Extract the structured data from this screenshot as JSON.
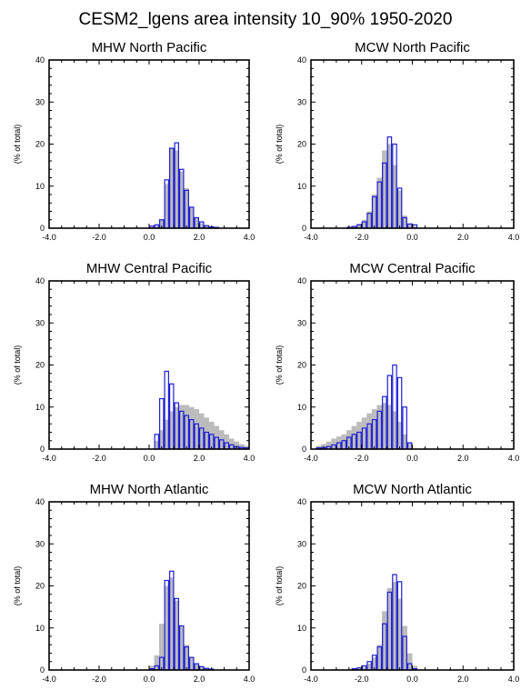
{
  "figure": {
    "title": "CESM2_lgens area intensity 10_90% 1950-2020"
  },
  "chart_data": [
    {
      "type": "bar",
      "title": "MHW North Pacific",
      "ylabel": "(% of total)",
      "xlim": [
        -4.0,
        4.0
      ],
      "ylim": [
        0,
        40
      ],
      "xticks": [
        "-4.0",
        "-2.0",
        "0.0",
        "2.0",
        "4.0"
      ],
      "yticks": [
        "0",
        "10",
        "20",
        "30",
        "40"
      ],
      "bin_width": 0.2,
      "series": [
        {
          "style": "filled-gray",
          "bin_starts": [
            0.0,
            0.2,
            0.4,
            0.6,
            0.8,
            1.0,
            1.2,
            1.4,
            1.6,
            1.8,
            2.0,
            2.2,
            2.4,
            2.6
          ],
          "values": [
            0.3,
            0.6,
            2.0,
            10.5,
            19.0,
            18.5,
            13.5,
            9.5,
            5.0,
            2.5,
            1.2,
            0.5,
            0.3,
            0.2
          ]
        },
        {
          "style": "outline-blue",
          "bin_starts": [
            0.0,
            0.2,
            0.4,
            0.6,
            0.8,
            1.0,
            1.2,
            1.4,
            1.6,
            1.8,
            2.0,
            2.2,
            2.4,
            2.6
          ],
          "values": [
            0.5,
            0.8,
            2.0,
            11.5,
            19.0,
            20.3,
            14.0,
            9.0,
            5.0,
            2.5,
            1.5,
            0.6,
            0.3,
            0.2
          ]
        }
      ]
    },
    {
      "type": "bar",
      "title": "MCW North Pacific",
      "ylabel": "(% of total)",
      "xlim": [
        -4.0,
        4.0
      ],
      "ylim": [
        0,
        40
      ],
      "xticks": [
        "-4.0",
        "-2.0",
        "0.0",
        "2.0",
        "4.0"
      ],
      "yticks": [
        "0",
        "10",
        "20",
        "30",
        "40"
      ],
      "bin_width": 0.2,
      "series": [
        {
          "style": "filled-gray",
          "bin_starts": [
            -2.6,
            -2.4,
            -2.2,
            -2.0,
            -1.8,
            -1.6,
            -1.4,
            -1.2,
            -1.0,
            -0.8,
            -0.6,
            -0.4,
            -0.2,
            0.0
          ],
          "values": [
            0.3,
            0.5,
            1.0,
            2.0,
            4.0,
            8.0,
            12.0,
            18.5,
            20.0,
            15.0,
            9.0,
            3.0,
            1.0,
            0.5
          ]
        },
        {
          "style": "outline-blue",
          "bin_starts": [
            -2.6,
            -2.4,
            -2.2,
            -2.0,
            -1.8,
            -1.6,
            -1.4,
            -1.2,
            -1.0,
            -0.8,
            -0.6,
            -0.4,
            -0.2,
            0.0
          ],
          "values": [
            0.2,
            0.4,
            0.8,
            1.5,
            3.5,
            7.5,
            11.0,
            15.5,
            21.7,
            20.0,
            9.5,
            2.5,
            1.0,
            0.8
          ]
        }
      ]
    },
    {
      "type": "bar",
      "title": "MHW Central Pacific",
      "ylabel": "(% of total)",
      "xlim": [
        -4.0,
        4.0
      ],
      "ylim": [
        0,
        40
      ],
      "xticks": [
        "-4.0",
        "-2.0",
        "0.0",
        "2.0",
        "4.0"
      ],
      "yticks": [
        "0",
        "10",
        "20",
        "30",
        "40"
      ],
      "bin_width": 0.2,
      "series": [
        {
          "style": "filled-gray",
          "bin_starts": [
            0.2,
            0.4,
            0.6,
            0.8,
            1.0,
            1.2,
            1.4,
            1.6,
            1.8,
            2.0,
            2.2,
            2.4,
            2.6,
            2.8,
            3.0,
            3.2,
            3.4,
            3.6,
            3.8
          ],
          "values": [
            2.0,
            4.5,
            7.0,
            9.0,
            10.0,
            10.5,
            10.5,
            10.0,
            9.5,
            8.5,
            7.5,
            6.5,
            5.5,
            4.5,
            3.5,
            2.5,
            1.8,
            1.2,
            0.8
          ]
        },
        {
          "style": "outline-blue",
          "bin_starts": [
            0.2,
            0.4,
            0.6,
            0.8,
            1.0,
            1.2,
            1.4,
            1.6,
            1.8,
            2.0,
            2.2,
            2.4,
            2.6,
            2.8,
            3.0,
            3.2,
            3.4,
            3.6,
            3.8
          ],
          "values": [
            3.5,
            12.0,
            18.5,
            15.5,
            11.0,
            9.0,
            8.0,
            7.0,
            6.0,
            5.0,
            4.0,
            3.5,
            2.8,
            2.2,
            1.5,
            1.0,
            0.6,
            0.4,
            0.3
          ]
        }
      ]
    },
    {
      "type": "bar",
      "title": "MCW Central Pacific",
      "ylabel": "(% of total)",
      "xlim": [
        -4.0,
        4.0
      ],
      "ylim": [
        0,
        40
      ],
      "xticks": [
        "-4.0",
        "-2.0",
        "0.0",
        "2.0",
        "4.0"
      ],
      "yticks": [
        "0",
        "10",
        "20",
        "30",
        "40"
      ],
      "bin_width": 0.2,
      "series": [
        {
          "style": "filled-gray",
          "bin_starts": [
            -3.8,
            -3.6,
            -3.4,
            -3.2,
            -3.0,
            -2.8,
            -2.6,
            -2.4,
            -2.2,
            -2.0,
            -1.8,
            -1.6,
            -1.4,
            -1.2,
            -1.0,
            -0.8,
            -0.6,
            -0.4,
            -0.2
          ],
          "values": [
            0.8,
            1.2,
            1.8,
            2.5,
            3.0,
            3.5,
            4.5,
            5.5,
            6.5,
            7.5,
            8.5,
            9.5,
            10.5,
            11.0,
            10.5,
            9.0,
            6.5,
            3.5,
            1.5
          ]
        },
        {
          "style": "outline-blue",
          "bin_starts": [
            -3.8,
            -3.6,
            -3.4,
            -3.2,
            -3.0,
            -2.8,
            -2.6,
            -2.4,
            -2.2,
            -2.0,
            -1.8,
            -1.6,
            -1.4,
            -1.2,
            -1.0,
            -0.8,
            -0.6,
            -0.4,
            -0.2
          ],
          "values": [
            0.3,
            0.4,
            0.6,
            1.0,
            1.5,
            2.0,
            2.8,
            3.5,
            4.0,
            5.0,
            6.0,
            7.0,
            9.0,
            12.5,
            17.5,
            20.0,
            17.0,
            10.0,
            1.5
          ]
        }
      ]
    },
    {
      "type": "bar",
      "title": "MHW North Atlantic",
      "ylabel": "(% of total)",
      "xlim": [
        -4.0,
        4.0
      ],
      "ylim": [
        0,
        40
      ],
      "xticks": [
        "-4.0",
        "-2.0",
        "0.0",
        "2.0",
        "4.0"
      ],
      "yticks": [
        "0",
        "10",
        "20",
        "30",
        "40"
      ],
      "bin_width": 0.2,
      "series": [
        {
          "style": "filled-gray",
          "bin_starts": [
            0.0,
            0.2,
            0.4,
            0.6,
            0.8,
            1.0,
            1.2,
            1.4,
            1.6,
            1.8,
            2.0,
            2.2,
            2.4
          ],
          "values": [
            1.0,
            3.5,
            11.0,
            20.0,
            22.0,
            16.5,
            10.5,
            6.0,
            3.0,
            1.5,
            0.8,
            0.4,
            0.2
          ]
        },
        {
          "style": "outline-blue",
          "bin_starts": [
            0.0,
            0.2,
            0.4,
            0.6,
            0.8,
            1.0,
            1.2,
            1.4,
            1.6,
            1.8,
            2.0,
            2.2,
            2.4
          ],
          "values": [
            0.3,
            1.0,
            3.0,
            21.3,
            23.5,
            17.0,
            10.5,
            5.5,
            3.0,
            1.5,
            0.8,
            0.4,
            0.2
          ]
        }
      ]
    },
    {
      "type": "bar",
      "title": "MCW North Atlantic",
      "ylabel": "(% of total)",
      "xlim": [
        -4.0,
        4.0
      ],
      "ylim": [
        0,
        40
      ],
      "xticks": [
        "-4.0",
        "-2.0",
        "0.0",
        "2.0",
        "4.0"
      ],
      "yticks": [
        "0",
        "10",
        "20",
        "30",
        "40"
      ],
      "bin_width": 0.2,
      "series": [
        {
          "style": "filled-gray",
          "bin_starts": [
            -2.4,
            -2.2,
            -2.0,
            -1.8,
            -1.6,
            -1.4,
            -1.2,
            -1.0,
            -0.8,
            -0.6,
            -0.4,
            -0.2,
            0.0
          ],
          "values": [
            0.2,
            0.4,
            0.8,
            1.5,
            3.0,
            6.0,
            14.0,
            19.5,
            21.0,
            17.0,
            10.5,
            4.0,
            1.0
          ]
        },
        {
          "style": "outline-blue",
          "bin_starts": [
            -2.4,
            -2.2,
            -2.0,
            -1.8,
            -1.6,
            -1.4,
            -1.2,
            -1.0,
            -0.8,
            -0.6,
            -0.4,
            -0.2,
            0.0
          ],
          "values": [
            0.3,
            0.5,
            1.0,
            2.0,
            3.5,
            5.5,
            11.0,
            18.5,
            22.7,
            21.0,
            8.0,
            1.5,
            0.3
          ]
        }
      ]
    }
  ]
}
